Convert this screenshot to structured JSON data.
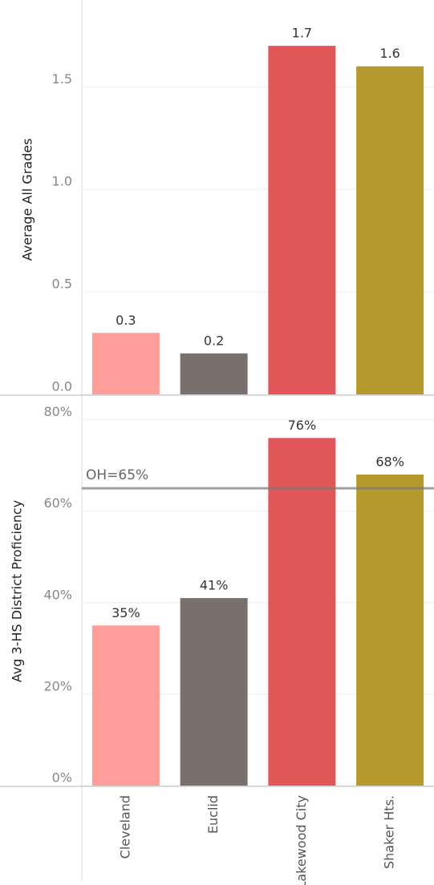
{
  "chart_data": [
    {
      "type": "bar",
      "y_label": "Average All Grades",
      "values": [
        0.3,
        0.2,
        1.7,
        1.6
      ],
      "colors": [
        "#ff9d9a",
        "#79706e",
        "#e15759",
        "#b6992d"
      ],
      "ylim": [
        0,
        1.9
      ],
      "yticks": [
        {
          "value": 0,
          "label": "0.0"
        },
        0.5,
        {
          "value": 1,
          "label": "1.0"
        },
        1.5
      ],
      "grid": true
    },
    {
      "type": "bar",
      "y_label": "Avg 3-HS District Proficiency",
      "categories": [
        "Cleveland",
        "Euclid",
        "Lakewood City",
        "Shaker Hts."
      ],
      "values": [
        35,
        41,
        76,
        68
      ],
      "value_labels": [
        "35%",
        "41%",
        "76%",
        "68%"
      ],
      "colors": [
        "#ff9d9a",
        "#79706e",
        "#e15759",
        "#b6992d"
      ],
      "ylim": [
        0,
        85
      ],
      "yticks": [
        {
          "value": 0,
          "label": "0%"
        },
        {
          "value": 20,
          "label": "20%"
        },
        {
          "value": 40,
          "label": "40%"
        },
        {
          "value": 60,
          "label": "60%"
        },
        {
          "value": 80,
          "label": "80%"
        }
      ],
      "grid": true,
      "reference_line": {
        "value": 65,
        "label": "OH=65%"
      }
    }
  ]
}
